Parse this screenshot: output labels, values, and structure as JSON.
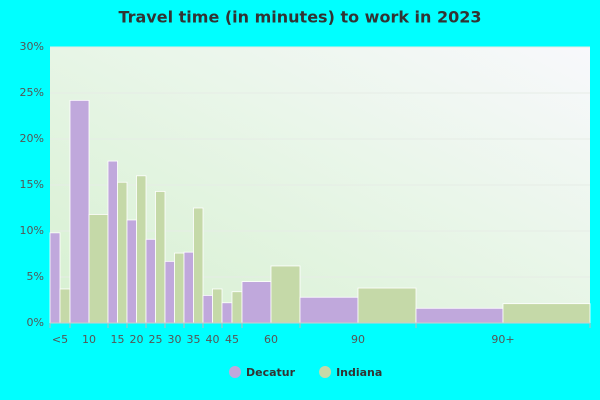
{
  "chart_data": {
    "type": "bar",
    "title": "Travel time (in minutes) to work in 2023",
    "categories": [
      "<5",
      "10",
      "15",
      "20",
      "25",
      "30",
      "35",
      "40",
      "45",
      "60",
      "90",
      "90+"
    ],
    "series": [
      {
        "name": "Decatur",
        "color": "#c0a8dc",
        "values": [
          9.8,
          24.2,
          17.6,
          11.2,
          9.1,
          6.7,
          7.7,
          3.0,
          2.2,
          4.5,
          2.8,
          1.6
        ]
      },
      {
        "name": "Indiana",
        "color": "#c5d9a8",
        "values": [
          3.7,
          11.8,
          15.3,
          16.0,
          14.3,
          7.6,
          12.5,
          3.7,
          3.4,
          6.2,
          3.8,
          2.1
        ]
      }
    ],
    "ylim": [
      0,
      30
    ],
    "yticks": [
      {
        "value": 0,
        "label": "0%"
      },
      {
        "value": 5,
        "label": "5%"
      },
      {
        "value": 10,
        "label": "10%"
      },
      {
        "value": 15,
        "label": "15%"
      },
      {
        "value": 20,
        "label": "20%"
      },
      {
        "value": 25,
        "label": "25%"
      },
      {
        "value": 30,
        "label": "30%"
      }
    ],
    "grid": true,
    "legend": "bottom"
  }
}
